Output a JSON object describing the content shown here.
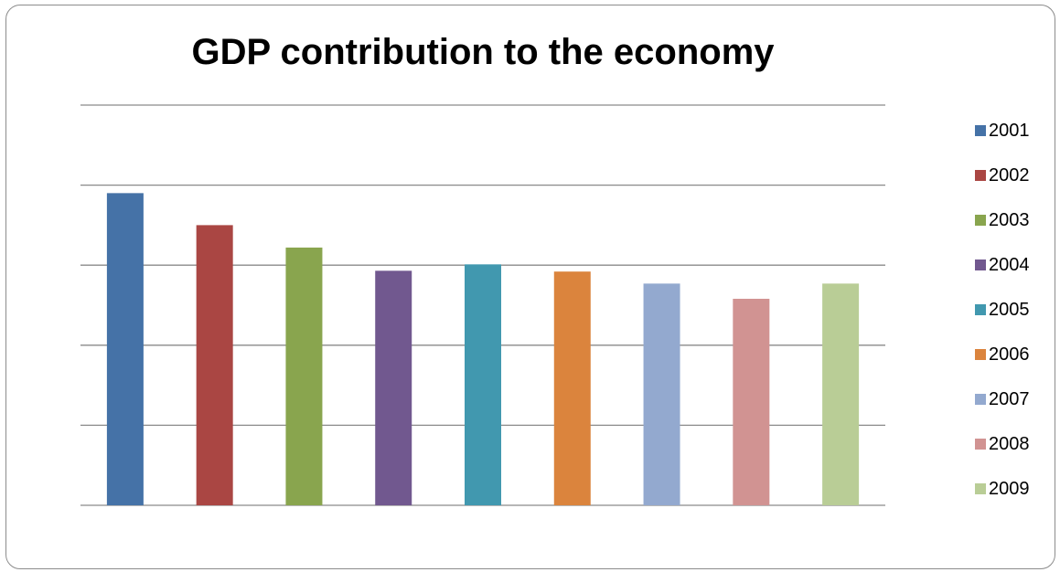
{
  "chart_data": {
    "type": "bar",
    "title": "GDP contribution to the economy",
    "xlabel": "",
    "ylabel": "",
    "ylim": [
      0,
      5
    ],
    "grid": true,
    "legend_position": "right",
    "series": [
      {
        "name": "2001",
        "values": [
          3.9
        ],
        "color": "#4572A7"
      },
      {
        "name": "2002",
        "values": [
          3.5
        ],
        "color": "#AA4643"
      },
      {
        "name": "2003",
        "values": [
          3.22
        ],
        "color": "#89A54E"
      },
      {
        "name": "2004",
        "values": [
          2.93
        ],
        "color": "#71588F"
      },
      {
        "name": "2005",
        "values": [
          3.01
        ],
        "color": "#4198AF"
      },
      {
        "name": "2006",
        "values": [
          2.92
        ],
        "color": "#DB843D"
      },
      {
        "name": "2007",
        "values": [
          2.77
        ],
        "color": "#93A9CF"
      },
      {
        "name": "2008",
        "values": [
          2.58
        ],
        "color": "#D19392"
      },
      {
        "name": "2009",
        "values": [
          2.77
        ],
        "color": "#B9CD96"
      }
    ]
  }
}
